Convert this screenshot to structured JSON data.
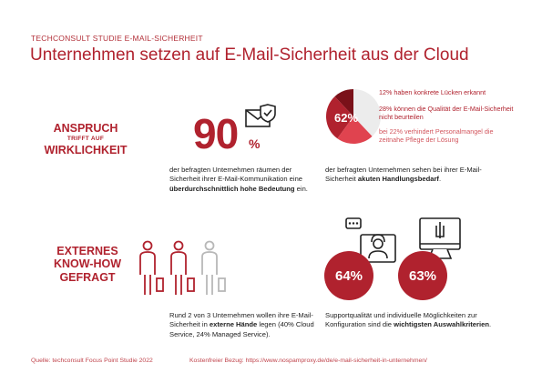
{
  "header": {
    "eyebrow": "TECHCONSULT STUDIE E-MAIL-SICHERHEIT",
    "title": "Unternehmen setzen auf E-Mail-Sicherheit aus der Cloud"
  },
  "row1": {
    "label_top": "ANSPRUCH",
    "label_mid": "TRIFFT AUF",
    "label_bottom": "WIRKLICHKEIT",
    "stat_value": "90",
    "stat_unit": "%",
    "stat_desc_plain": "der befragten Unternehmen räumen der Sicherheit ihrer E-Mail-Kommunikation eine",
    "stat_desc_bold": "überdurchschnittlich hohe Bedeutung",
    "stat_desc_end": "ein.",
    "pie_label": "62%",
    "pie_desc_plain": "der befragten Unternehmen sehen bei ihrer E-Mail-Sicherheit",
    "pie_desc_bold": "akuten Handlungsbedarf",
    "pie_desc_end": ".",
    "pie_legend": [
      "12% haben konkrete Lücken erkannt",
      "28% können die Qualität der E-Mail-Sicherheit nicht beurteilen",
      "bei 22% verhindert Personalmangel die zeitnahe Pflege der Lösung"
    ],
    "pie_colors": [
      "#7a1119",
      "#b0222e",
      "#e0434f"
    ],
    "pie_shares": [
      12,
      28,
      22
    ],
    "icon": "envelope-shield-icon"
  },
  "row2": {
    "label_lines": [
      "EXTERNES",
      "KNOW-HOW",
      "GEFRAGT"
    ],
    "people_desc_line1": "Rund 2 von 3 Unternehmen wollen ihre E-Mail-Sicherheit in",
    "people_desc_bold": "externe Hände",
    "people_desc_line2": "legen (40% Cloud Service, 24% Managed Service).",
    "circle1": "64%",
    "circle2": "63%",
    "support_desc_plain": "Supportqualität und individuelle Möglichkeiten zur Konfiguration sind die",
    "support_desc_bold": "wichtigsten Auswahlkriterien",
    "support_desc_end": ".",
    "icons": [
      "person-traveler-icon",
      "support-agent-icon",
      "computer-config-icon"
    ]
  },
  "footer": {
    "source": "Quelle: techconsult Focus Point Studie 2022",
    "link": "Kostenfreier Bezug: https://www.nospamproxy.de/de/e-mail-sicherheit-in-unternehmen/"
  }
}
